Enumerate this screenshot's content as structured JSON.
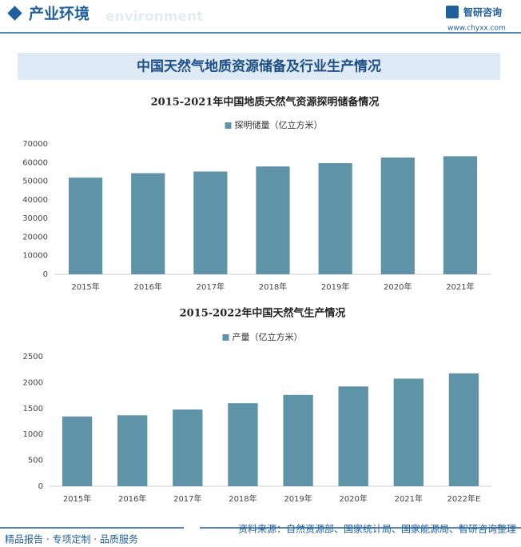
{
  "header": {
    "title": "产业环境",
    "subtitle": "environment",
    "brand": "智研咨询",
    "url": "www.chyxx.com"
  },
  "banner": "中国天然气地质资源储备及行业生产情况",
  "chart_data": [
    {
      "type": "bar",
      "title": "2015-2021年中国地质天然气资源探明储备情况",
      "categories": [
        "2015年",
        "2016年",
        "2017年",
        "2018年",
        "2019年",
        "2020年",
        "2021年"
      ],
      "series": [
        {
          "name": "探明储量（亿立方米）",
          "color": "#5f93a8",
          "values": [
            51900,
            54300,
            55200,
            57900,
            59700,
            62700,
            63400
          ]
        }
      ],
      "ylim": [
        0,
        70000
      ],
      "yticks": [
        0,
        10000,
        20000,
        30000,
        40000,
        50000,
        60000,
        70000
      ],
      "grid": false
    },
    {
      "type": "bar",
      "title": "2015-2022年中国天然气生产情况",
      "categories": [
        "2015年",
        "2016年",
        "2017年",
        "2018年",
        "2019年",
        "2020年",
        "2021年",
        "2022年E"
      ],
      "series": [
        {
          "name": "产量（亿立方米）",
          "color": "#5f93a8",
          "values": [
            1346,
            1369,
            1480,
            1602,
            1762,
            1925,
            2076,
            2178
          ]
        }
      ],
      "ylim": [
        0,
        2500
      ],
      "yticks": [
        0,
        500,
        1000,
        1500,
        2000,
        2500
      ],
      "grid": false
    }
  ],
  "footer": {
    "slogan": "精品报告 · 专项定制 · 品质服务",
    "source": "资料来源：自然资源部、国家统计局、国家能源局、智研咨询整理"
  }
}
